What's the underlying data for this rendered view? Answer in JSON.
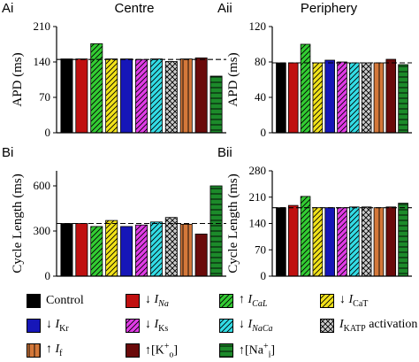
{
  "figure": {
    "column_titles": [
      "Centre",
      "Periphery"
    ]
  },
  "chart_data": [
    {
      "type": "bar",
      "panel_label": "Ai",
      "ylabel": "APD (ms)",
      "ylim": [
        0,
        210
      ],
      "yticks": [
        0,
        70,
        140,
        210
      ],
      "reference_line": 145,
      "categories": [
        "Control",
        "↓INa",
        "↑ICaL",
        "↓ICaT",
        "↓IKr",
        "↓IKs",
        "↓INaCa",
        "IKATP activation",
        "↑If",
        "↑[K+]o",
        "↑[Na+]i"
      ],
      "values": [
        146,
        146,
        176,
        146,
        146,
        145,
        146,
        141,
        146,
        148,
        112
      ]
    },
    {
      "type": "bar",
      "panel_label": "Aii",
      "ylabel": "APD (ms)",
      "ylim": [
        0,
        120
      ],
      "yticks": [
        0,
        40,
        80,
        120
      ],
      "reference_line": 79,
      "categories": [
        "Control",
        "↓INa",
        "↑ICaL",
        "↓ICaT",
        "↓IKr",
        "↓IKs",
        "↓INaCa",
        "IKATP activation",
        "↑If",
        "↑[K+]o",
        "↑[Na+]i"
      ],
      "values": [
        79,
        79,
        100,
        79,
        82,
        80,
        79,
        79,
        79,
        83,
        77
      ]
    },
    {
      "type": "bar",
      "panel_label": "Bi",
      "ylabel": "Cycle Length (ms)",
      "ylim": [
        0,
        700
      ],
      "yticks": [
        0,
        300,
        600
      ],
      "reference_line": 350,
      "categories": [
        "Control",
        "↓INa",
        "↑ICaL",
        "↓ICaT",
        "↓IKr",
        "↓IKs",
        "↓INaCa",
        "IKATP activation",
        "↑If",
        "↑[K+]o",
        "↑[Na+]i"
      ],
      "values": [
        350,
        350,
        330,
        370,
        330,
        340,
        360,
        390,
        345,
        280,
        600
      ]
    },
    {
      "type": "bar",
      "panel_label": "Bii",
      "ylabel": "Cycle Length (ms)",
      "ylim": [
        0,
        280
      ],
      "yticks": [
        0,
        70,
        140,
        210,
        280
      ],
      "reference_line": 182,
      "categories": [
        "Control",
        "↓INa",
        "↑ICaL",
        "↓ICaT",
        "↓IKr",
        "↓IKs",
        "↓INaCa",
        "IKATP activation",
        "↑If",
        "↑[K+]o",
        "↑[Na+]i"
      ],
      "values": [
        182,
        188,
        212,
        182,
        182,
        182,
        184,
        184,
        182,
        184,
        194
      ]
    }
  ],
  "series_styles": [
    {
      "color": "#000000",
      "pattern": "solid"
    },
    {
      "color": "#c01010",
      "pattern": "solid"
    },
    {
      "color": "#33cc33",
      "pattern": "hatch"
    },
    {
      "color": "#f2e21a",
      "pattern": "hatch"
    },
    {
      "color": "#1616b8",
      "pattern": "solid"
    },
    {
      "color": "#e03ce6",
      "pattern": "hatch"
    },
    {
      "color": "#33dde6",
      "pattern": "hatch"
    },
    {
      "color": "#cccccc",
      "pattern": "crosshatch"
    },
    {
      "color": "#d4783a",
      "pattern": "vertical"
    },
    {
      "color": "#6a0a0a",
      "pattern": "solid"
    },
    {
      "color": "#1c8a2a",
      "pattern": "horizontal"
    }
  ],
  "legend": [
    {
      "arrow": "",
      "sym": "Control",
      "sub": "",
      "sup": "",
      "suffix": "",
      "italic": false
    },
    {
      "arrow": "↓ ",
      "sym": "I",
      "sub": "Na",
      "sup": "",
      "suffix": "",
      "italic": true
    },
    {
      "arrow": "↑ ",
      "sym": "I",
      "sub": "CaL",
      "sup": "",
      "suffix": "",
      "italic": true
    },
    {
      "arrow": "↓ ",
      "sym": "I",
      "sub": "CaT",
      "sup": "",
      "suffix": "",
      "italic": false
    },
    {
      "arrow": "↓ ",
      "sym": "I",
      "sub": "Kr",
      "sup": "",
      "suffix": "",
      "italic": false
    },
    {
      "arrow": "↓ ",
      "sym": "I",
      "sub": "Ks",
      "sup": "",
      "suffix": "",
      "italic": false
    },
    {
      "arrow": "↓ ",
      "sym": "I",
      "sub": "NaCa",
      "sup": "",
      "suffix": "",
      "italic": true
    },
    {
      "arrow": "",
      "sym": "I",
      "sub": "KATP",
      "sup": "",
      "suffix": " activation",
      "italic": false
    },
    {
      "arrow": "↑ ",
      "sym": "I",
      "sub": "f",
      "sup": "",
      "suffix": "",
      "italic": false
    },
    {
      "arrow": "↑",
      "sym": "[K",
      "sub": "o",
      "sup": "+",
      "suffix": "]",
      "italic": false
    },
    {
      "arrow": "↑",
      "sym": "[Na",
      "sub": "i",
      "sup": "+",
      "suffix": "]",
      "italic": false
    }
  ]
}
